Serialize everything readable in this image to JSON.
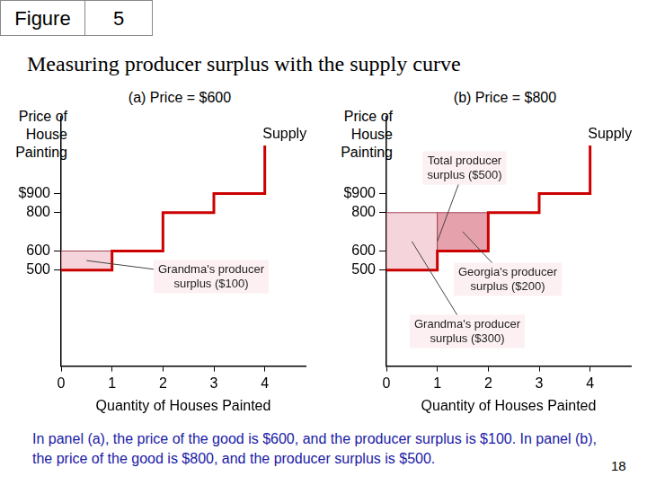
{
  "header": {
    "label": "Figure",
    "number": "5"
  },
  "title": "Measuring producer surplus with the supply curve",
  "chart_data": [
    {
      "type": "line",
      "title": "(a) Price = $600",
      "y_label": [
        "Price of",
        "House",
        "Painting"
      ],
      "x_label": "Quantity of Houses Painted",
      "x": [
        0,
        1,
        1,
        2,
        2,
        3,
        3,
        4,
        4
      ],
      "series": [
        {
          "name": "Supply",
          "color": "#cc0000",
          "values": [
            500,
            500,
            600,
            600,
            800,
            800,
            900,
            900,
            1150
          ]
        }
      ],
      "xlim": [
        0,
        4.8
      ],
      "xticks": [
        0,
        1,
        2,
        3,
        4
      ],
      "ylim": [
        0,
        1300
      ],
      "yticks": [
        {
          "value": 900,
          "label": "$900"
        },
        800,
        600,
        500
      ],
      "grid": false,
      "regions": [
        {
          "label": [
            "Grandma's producer",
            "surplus ($100)"
          ],
          "color": "#f5d5db",
          "x": [
            0,
            1
          ],
          "y": [
            500,
            600
          ]
        }
      ]
    },
    {
      "type": "line",
      "title": "(b) Price = $800",
      "y_label": [
        "Price of",
        "House",
        "Painting"
      ],
      "x_label": "Quantity of Houses Painted",
      "x": [
        0,
        1,
        1,
        2,
        2,
        3,
        3,
        4,
        4
      ],
      "series": [
        {
          "name": "Supply",
          "color": "#cc0000",
          "values": [
            500,
            500,
            600,
            600,
            800,
            800,
            900,
            900,
            1150
          ]
        }
      ],
      "xlim": [
        0,
        4.8
      ],
      "xticks": [
        0,
        1,
        2,
        3,
        4
      ],
      "ylim": [
        0,
        1300
      ],
      "yticks": [
        {
          "value": 900,
          "label": "$900"
        },
        800,
        600,
        500
      ],
      "grid": false,
      "regions": [
        {
          "label": [
            "Grandma's producer",
            "surplus ($300)"
          ],
          "color": "#f5d5db",
          "x": [
            0,
            1
          ],
          "y": [
            500,
            800
          ]
        },
        {
          "label": [
            "Georgia's producer",
            "surplus ($200)"
          ],
          "color": "#e5a2ad",
          "x": [
            1,
            2
          ],
          "y": [
            600,
            800
          ]
        }
      ],
      "total_label": [
        "Total producer",
        "surplus ($500)"
      ]
    }
  ],
  "caption": "In panel (a), the price of the good is $600, and the producer surplus is $100. In panel (b), the price of the good is $800, and the producer surplus is $500.",
  "page_number": "18"
}
